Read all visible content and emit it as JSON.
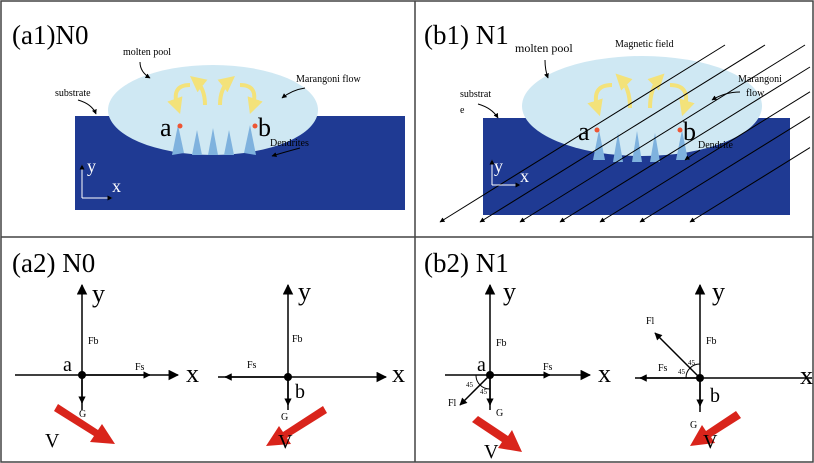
{
  "a1": {
    "title": "(a1)N0",
    "molten_pool": "molten pool",
    "substrate": "substrate",
    "marangoni": "Marangoni flow",
    "dendrites": "Dendrites",
    "point_a": "a",
    "point_b": "b",
    "axis_y": "y",
    "axis_x": "x"
  },
  "b1": {
    "title": "(b1) N1",
    "molten_pool": "molten pool",
    "magnetic_field": "Magnetic field",
    "substrate": [
      "substrat",
      "e"
    ],
    "marangoni": [
      "Marangoni",
      "flow"
    ],
    "dendrite": "Dendrite",
    "point_a": "a",
    "point_b": "b",
    "axis_y": "y",
    "axis_x": "x"
  },
  "a2": {
    "title": "(a2) N0",
    "left": {
      "y": "y",
      "x": "x",
      "fb": "Fb",
      "fs": "Fs",
      "g": "G",
      "point": "a",
      "v": "V"
    },
    "right": {
      "y": "y",
      "x": "x",
      "fb": "Fb",
      "fs": "Fs",
      "g": "G",
      "point": "b",
      "v": "V"
    }
  },
  "b2": {
    "title": "(b2) N1",
    "left": {
      "y": "y",
      "x": "x",
      "fb": "Fb",
      "fs": "Fs",
      "g": "G",
      "point": "a",
      "v": "V",
      "fl": "Fl",
      "angle1": "45",
      "angle2": "45"
    },
    "right": {
      "y": "y",
      "x": "x",
      "fb": "Fb",
      "fs": "Fs",
      "g": "G",
      "point": "b",
      "v": "V",
      "fl": "Fl",
      "angle1": "45",
      "angle2": "45"
    }
  }
}
